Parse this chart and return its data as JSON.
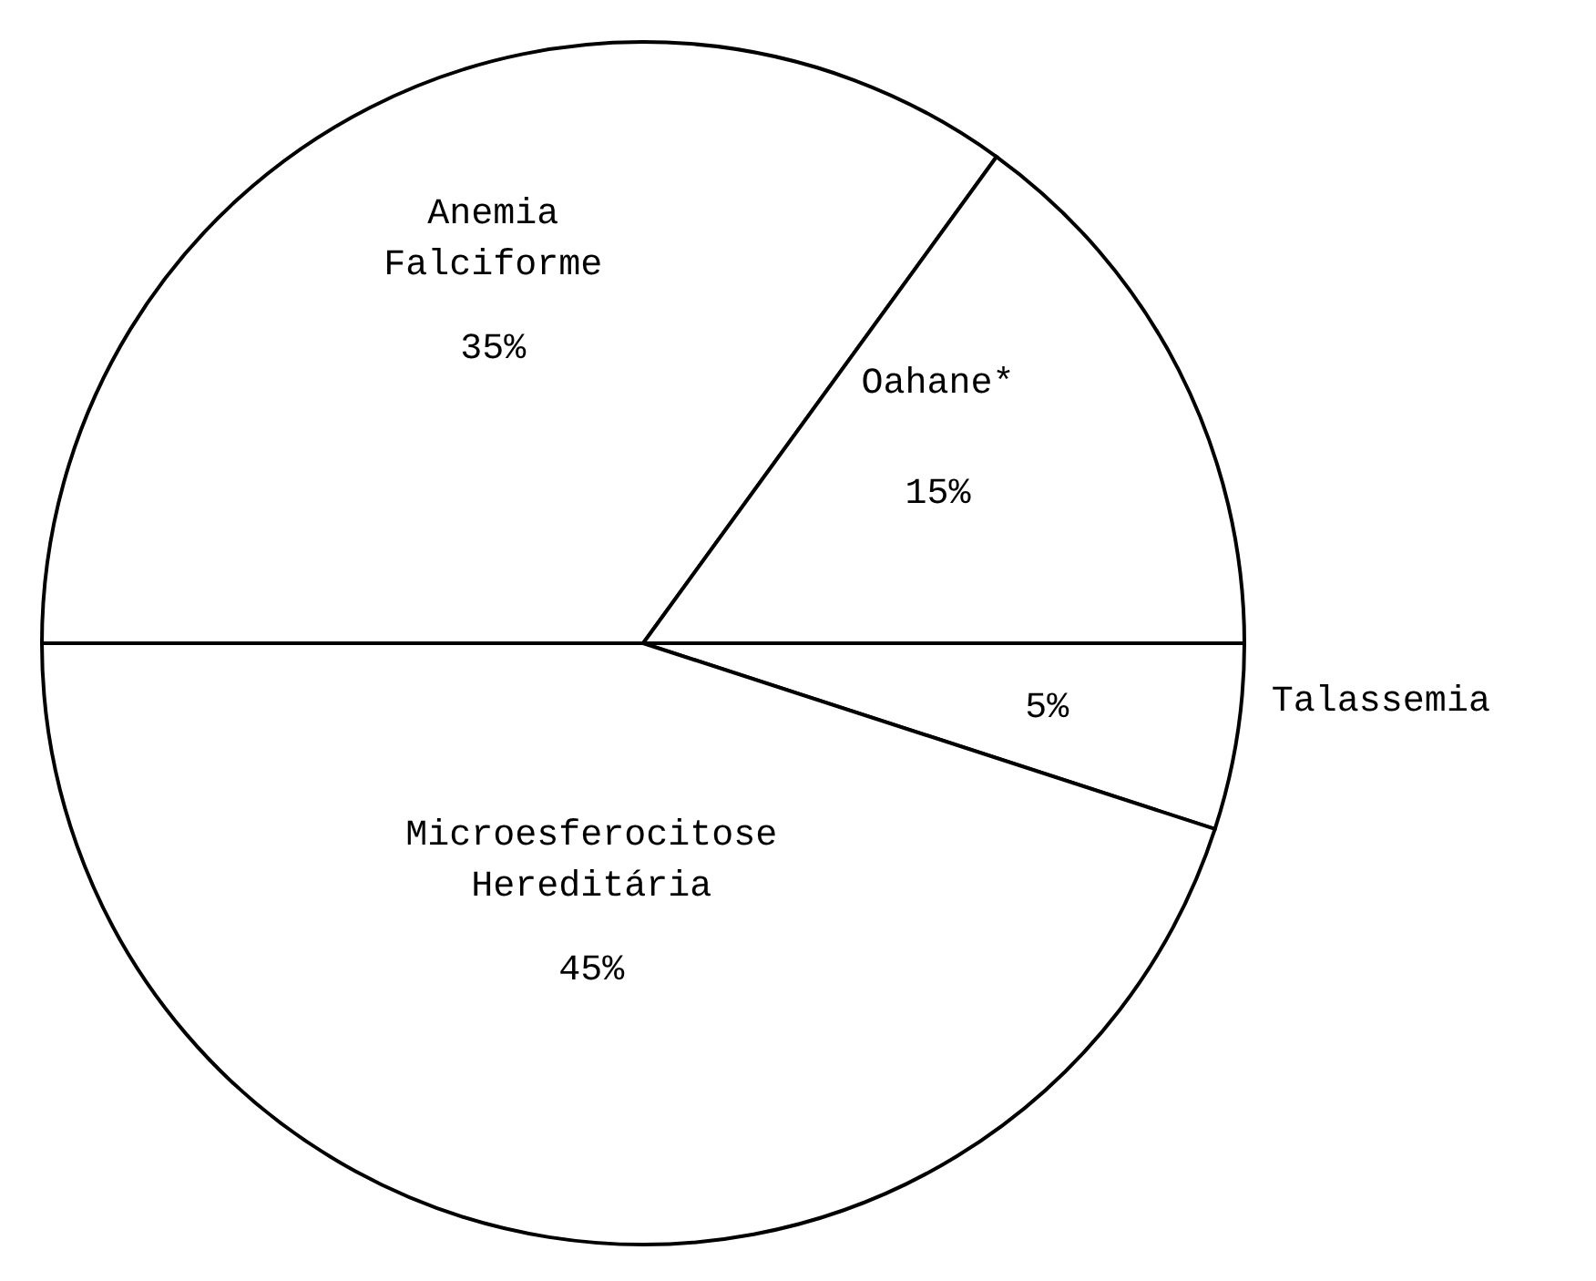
{
  "chart_data": {
    "type": "pie",
    "categories": [
      "Anemia Falciforme",
      "Oahane*",
      "Talassemia",
      "Microesferocitose Hereditária"
    ],
    "values": [
      35,
      15,
      5,
      45
    ],
    "colors": [
      "#ffffff",
      "#ffffff",
      "#ffffff",
      "#ffffff"
    ],
    "value_labels": [
      "35%",
      "15%",
      "5%",
      "45%"
    ]
  }
}
